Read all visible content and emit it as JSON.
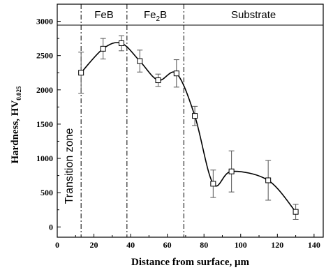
{
  "chart_data": {
    "type": "line",
    "xlabel": "Distance from surface, μm",
    "ylabel": {
      "main": "Hardness, HV",
      "subscript": "0.025"
    },
    "xlim": [
      0,
      145
    ],
    "ylim": [
      -150,
      3250
    ],
    "xticks": [
      0,
      20,
      40,
      60,
      80,
      100,
      120,
      140
    ],
    "yticks": [
      0,
      500,
      1000,
      1500,
      2000,
      2500,
      3000
    ],
    "grid": false,
    "marker": "open-square",
    "series": [
      {
        "x": [
          13,
          25,
          35,
          45,
          55,
          65,
          75,
          85,
          95,
          115,
          130
        ],
        "y": [
          2250,
          2600,
          2680,
          2420,
          2140,
          2240,
          1620,
          630,
          810,
          680,
          220
        ],
        "err": [
          300,
          150,
          110,
          160,
          90,
          200,
          140,
          200,
          300,
          290,
          110
        ]
      }
    ],
    "boundaries": [
      13,
      38,
      69
    ],
    "regions": [
      {
        "label": "FeB",
        "sub": ""
      },
      {
        "label": "Fe",
        "sub": "2",
        "suffix": "B"
      },
      {
        "label": "Substrate",
        "sub": ""
      }
    ],
    "annotation": "Transition zone"
  }
}
